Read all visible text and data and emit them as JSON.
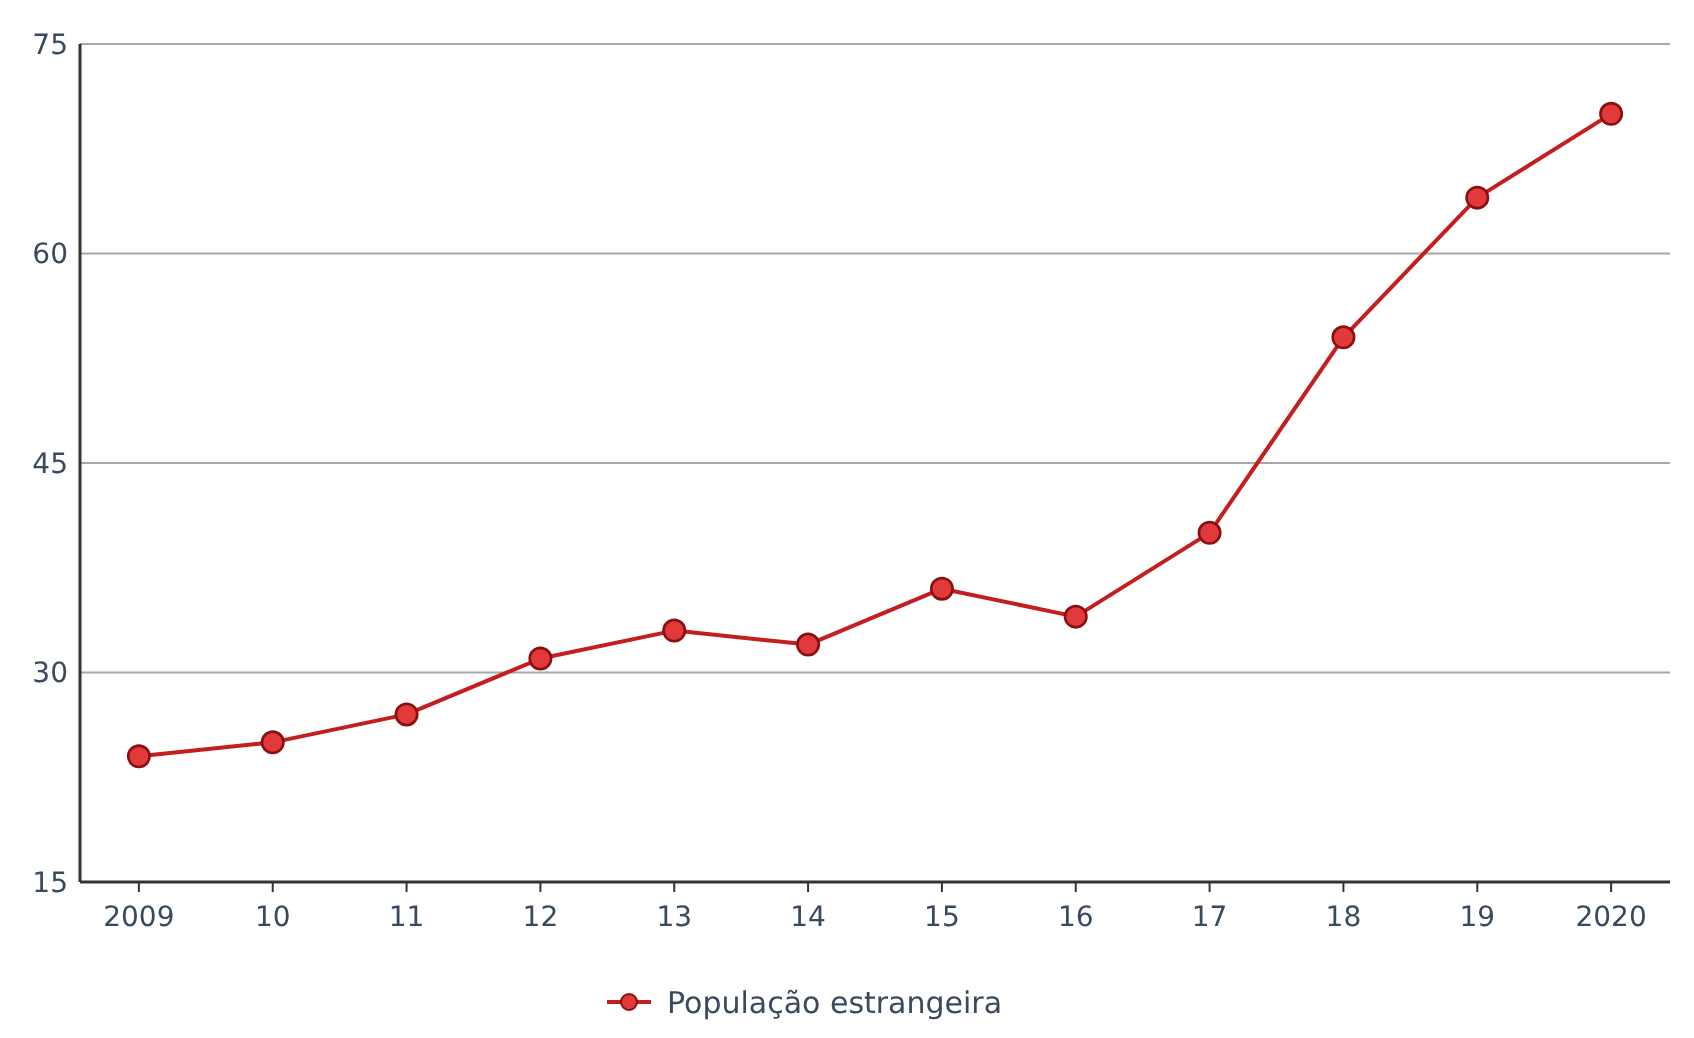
{
  "chart_data": {
    "type": "line",
    "categories": [
      "2009",
      "10",
      "11",
      "12",
      "13",
      "14",
      "15",
      "16",
      "17",
      "18",
      "19",
      "2020"
    ],
    "series": [
      {
        "name": "População estrangeira",
        "color": "#c41e1e",
        "values": [
          24,
          25,
          27,
          31,
          33,
          32,
          36,
          34,
          40,
          54,
          64,
          70
        ]
      }
    ],
    "ylim": [
      15,
      75
    ],
    "yticks": [
      15,
      30,
      45,
      60,
      75
    ],
    "grid": "y",
    "legend": "bottom",
    "marker": "circle"
  }
}
